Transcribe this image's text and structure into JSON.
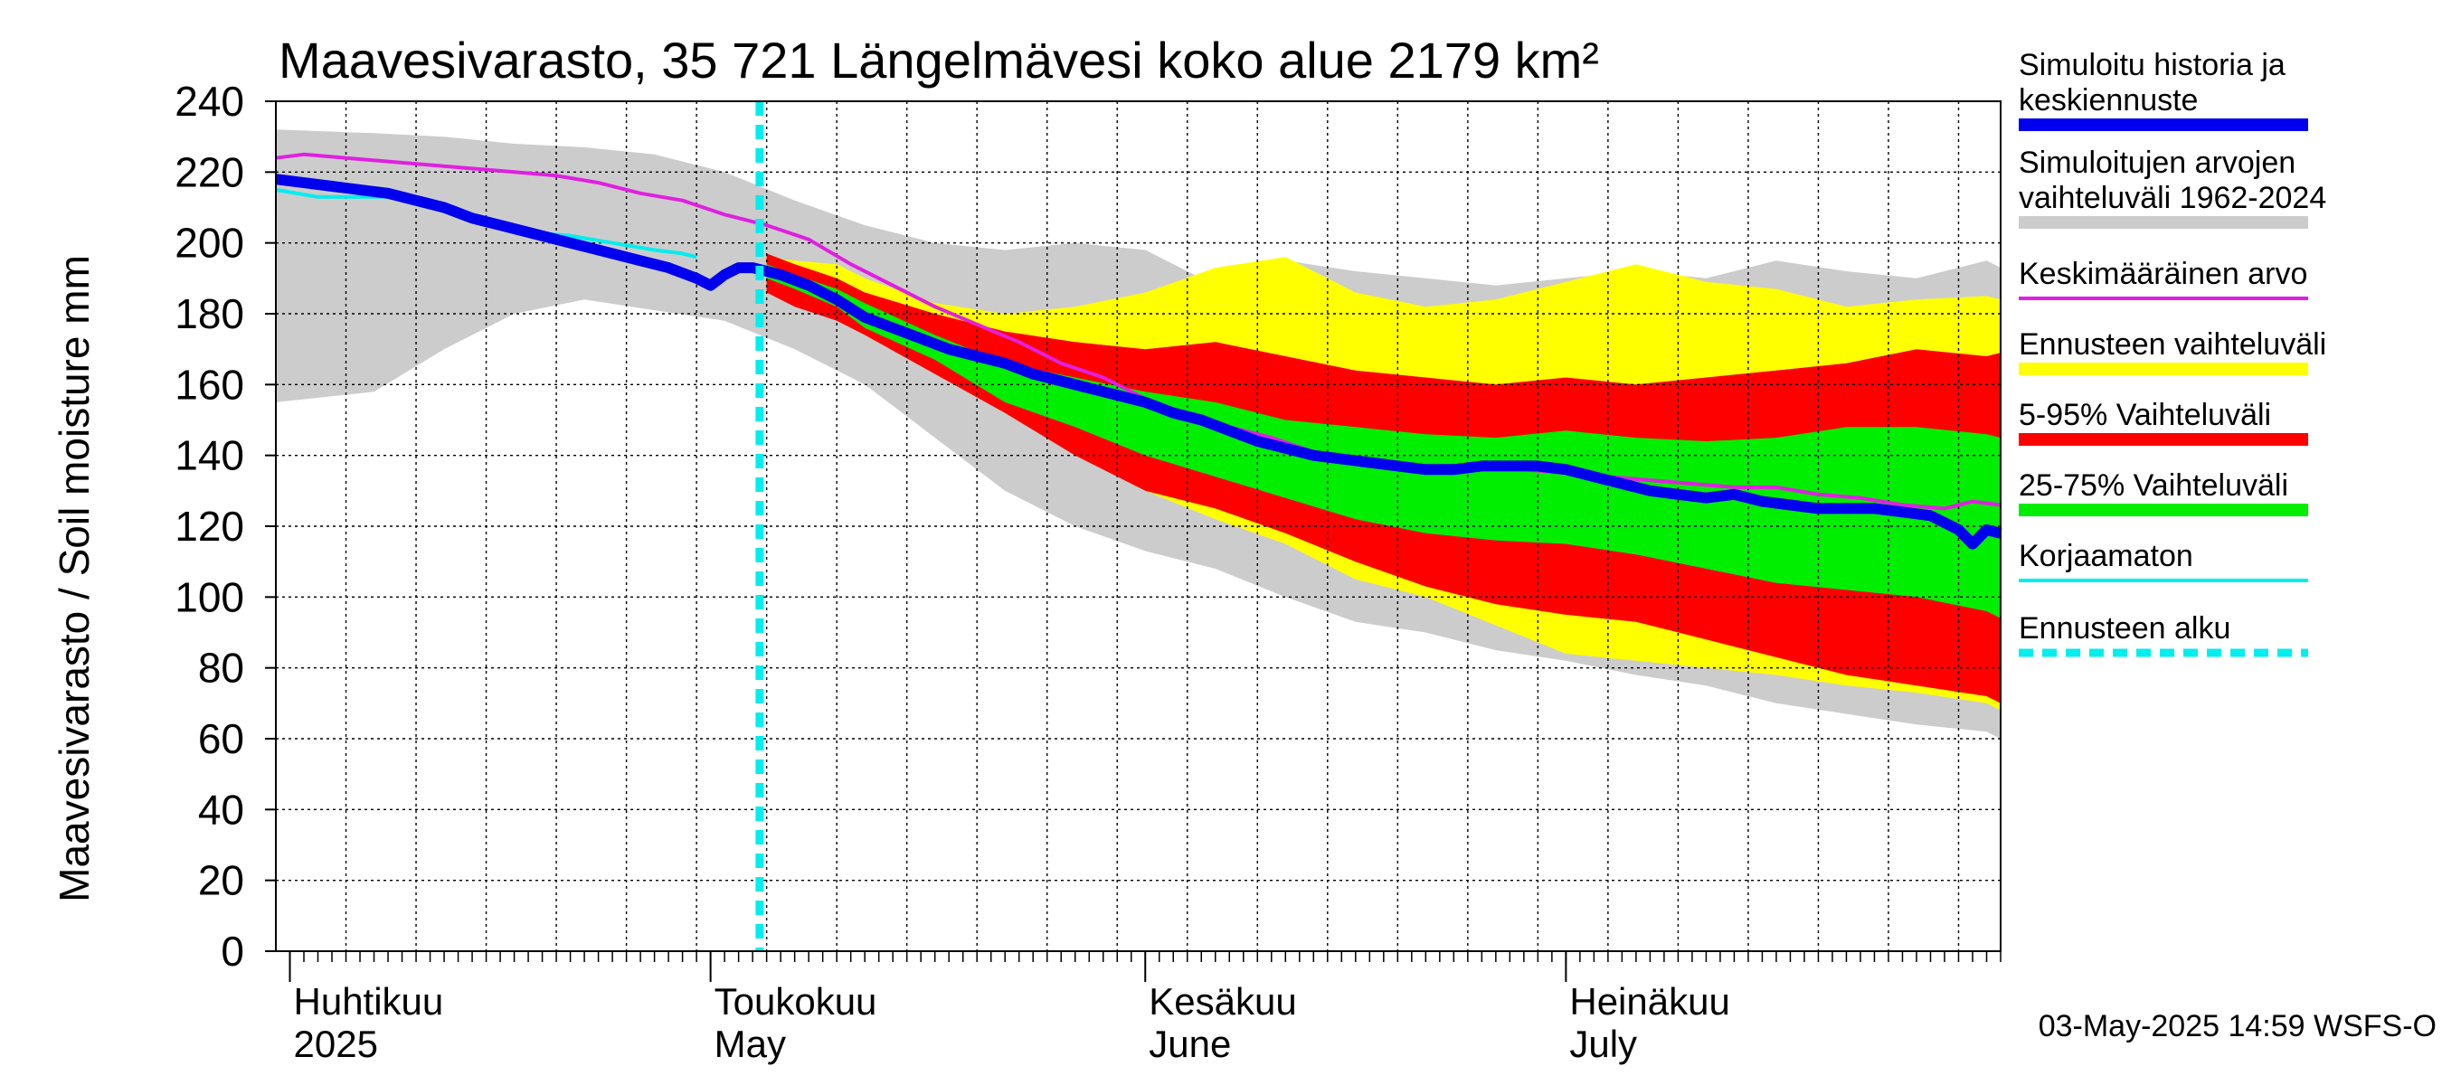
{
  "chart_data": {
    "type": "area",
    "title": "Maavesivarasto, 35 721 Längelmävesi koko alue 2179 km²",
    "ylabel": "Maavesivarasto / Soil moisture   mm",
    "ylim": [
      0,
      240
    ],
    "yticks": [
      0,
      20,
      40,
      60,
      80,
      100,
      120,
      140,
      160,
      180,
      200,
      220,
      240
    ],
    "x_unit": "day",
    "x_range_days": [
      -32,
      91
    ],
    "forecast_start_day": 2.5,
    "months": [
      {
        "day": -31,
        "line1": "Huhtikuu",
        "line2": "2025"
      },
      {
        "day": -1,
        "line1": "Toukokuu",
        "line2": "May"
      },
      {
        "day": 30,
        "line1": "Kesäkuu",
        "line2": "June"
      },
      {
        "day": 60,
        "line1": "Heinäkuu",
        "line2": "July"
      }
    ],
    "legend": [
      {
        "key": "main",
        "text1": "Simuloitu historia ja",
        "text2": "keskiennuste",
        "color": "#0000ee"
      },
      {
        "key": "hist",
        "text1": "Simuloitujen arvojen",
        "text2": "vaihteluväli 1962-2024",
        "color": "#cccccc"
      },
      {
        "key": "mean",
        "text1": "Keskimääräinen arvo",
        "text2": "",
        "color": "#e020e0"
      },
      {
        "key": "ensrange",
        "text1": "Ennusteen vaihteluväli",
        "text2": "",
        "color": "#ffff00"
      },
      {
        "key": "p5_95",
        "text1": "5-95% Vaihteluväli",
        "text2": "",
        "color": "#ff0000"
      },
      {
        "key": "p25_75",
        "text1": "25-75% Vaihteluväli",
        "text2": "",
        "color": "#00ee00"
      },
      {
        "key": "raw",
        "text1": "Korjaamaton",
        "text2": "",
        "color": "#00eeee"
      },
      {
        "key": "start",
        "text1": "Ennusteen alku",
        "text2": "",
        "color": "#00eeee"
      }
    ],
    "series": {
      "hist_band": {
        "x": [
          -32,
          -25,
          -20,
          -15,
          -10,
          -5,
          0,
          5,
          10,
          15,
          20,
          25,
          30,
          35,
          40,
          45,
          50,
          55,
          60,
          65,
          70,
          75,
          80,
          85,
          90,
          91
        ],
        "upper": [
          232,
          231,
          230,
          228,
          227,
          225,
          220,
          212,
          205,
          200,
          198,
          200,
          198,
          188,
          195,
          192,
          190,
          188,
          190,
          192,
          190,
          195,
          192,
          190,
          195,
          193
        ],
        "lower": [
          155,
          158,
          170,
          180,
          184,
          181,
          178,
          170,
          160,
          145,
          130,
          120,
          113,
          108,
          100,
          93,
          90,
          85,
          82,
          78,
          75,
          70,
          67,
          64,
          62,
          60
        ]
      },
      "ens_band": {
        "x": [
          3,
          5,
          8,
          10,
          15,
          20,
          25,
          30,
          35,
          40,
          45,
          50,
          55,
          60,
          65,
          70,
          75,
          80,
          85,
          90,
          91
        ],
        "upper": [
          196,
          195,
          194,
          190,
          183,
          180,
          182,
          186,
          193,
          196,
          186,
          182,
          184,
          189,
          194,
          189,
          187,
          182,
          184,
          185,
          184
        ],
        "lower": [
          186,
          184,
          180,
          176,
          168,
          162,
          148,
          130,
          122,
          115,
          105,
          100,
          92,
          84,
          82,
          80,
          78,
          75,
          73,
          70,
          68
        ]
      },
      "p5_95": {
        "x": [
          3,
          5,
          8,
          10,
          15,
          20,
          25,
          30,
          35,
          40,
          45,
          50,
          55,
          60,
          65,
          70,
          75,
          80,
          85,
          90,
          91
        ],
        "upper": [
          197,
          194,
          190,
          186,
          180,
          175,
          172,
          170,
          172,
          168,
          164,
          162,
          160,
          162,
          160,
          162,
          164,
          166,
          170,
          168,
          169
        ],
        "lower": [
          186,
          182,
          178,
          174,
          163,
          152,
          140,
          130,
          125,
          118,
          110,
          103,
          98,
          95,
          93,
          88,
          83,
          78,
          75,
          72,
          70
        ]
      },
      "p25_75": {
        "x": [
          3,
          5,
          8,
          10,
          15,
          20,
          25,
          30,
          35,
          40,
          45,
          50,
          55,
          60,
          65,
          70,
          75,
          80,
          85,
          90,
          91
        ],
        "upper": [
          194,
          191,
          187,
          183,
          174,
          166,
          162,
          158,
          155,
          150,
          148,
          146,
          145,
          147,
          145,
          144,
          145,
          148,
          148,
          146,
          145
        ],
        "lower": [
          190,
          187,
          182,
          176,
          167,
          155,
          148,
          140,
          134,
          128,
          122,
          118,
          116,
          115,
          112,
          108,
          104,
          102,
          100,
          96,
          94
        ]
      },
      "mean": {
        "x": [
          -32,
          -30,
          -27,
          -24,
          -21,
          -18,
          -15,
          -12,
          -9,
          -6,
          -3,
          0,
          3,
          6,
          9,
          12,
          15,
          18,
          21,
          24,
          27,
          30,
          33,
          36,
          39,
          42,
          45,
          48,
          51,
          54,
          57,
          60,
          63,
          66,
          69,
          72,
          75,
          78,
          81,
          84,
          87,
          89,
          91
        ],
        "y": [
          224,
          225,
          224,
          223,
          222,
          221,
          220,
          219,
          217,
          214,
          212,
          208,
          205,
          201,
          194,
          188,
          182,
          177,
          172,
          166,
          162,
          156,
          150,
          148,
          145,
          141,
          139,
          136,
          137,
          137,
          136,
          135,
          134,
          133,
          132,
          131,
          131,
          129,
          128,
          126,
          125,
          127,
          126
        ]
      },
      "raw": {
        "x": [
          -32,
          -29,
          -26,
          -23,
          -20,
          -17,
          -14,
          -11,
          -8,
          -5,
          -3,
          -2
        ],
        "y": [
          215,
          213,
          213,
          213,
          209,
          205,
          203,
          202,
          200,
          198,
          197,
          196
        ]
      },
      "main": {
        "x": [
          -32,
          -30,
          -28,
          -26,
          -24,
          -22,
          -20,
          -18,
          -16,
          -14,
          -12,
          -10,
          -8,
          -6,
          -4,
          -2,
          -1,
          0,
          1,
          2,
          4,
          6,
          8,
          10,
          12,
          14,
          16,
          18,
          20,
          22,
          24,
          26,
          28,
          30,
          32,
          34,
          36,
          38,
          40,
          42,
          44,
          46,
          48,
          50,
          52,
          54,
          56,
          58,
          60,
          62,
          64,
          66,
          68,
          70,
          72,
          74,
          76,
          78,
          80,
          82,
          84,
          86,
          88,
          89,
          90,
          91
        ],
        "y": [
          218,
          217,
          216,
          215,
          214,
          212,
          210,
          207,
          205,
          203,
          201,
          199,
          197,
          195,
          193,
          190,
          188,
          191,
          193,
          193,
          191,
          188,
          184,
          179,
          176,
          173,
          170,
          168,
          166,
          163,
          161,
          159,
          157,
          155,
          152,
          150,
          147,
          144,
          142,
          140,
          139,
          138,
          137,
          136,
          136,
          137,
          137,
          137,
          136,
          134,
          132,
          130,
          129,
          128,
          129,
          127,
          126,
          125,
          125,
          125,
          124,
          123,
          119,
          115,
          119,
          118
        ]
      }
    }
  },
  "footer": "03-May-2025 14:59 WSFS-O",
  "colors": {
    "hist": "#cccccc",
    "ens": "#ffff00",
    "p5_95": "#ff0000",
    "p25_75": "#00ee00",
    "mean": "#e020e0",
    "raw": "#00eeee",
    "main": "#0000ee",
    "start": "#00eeee"
  }
}
